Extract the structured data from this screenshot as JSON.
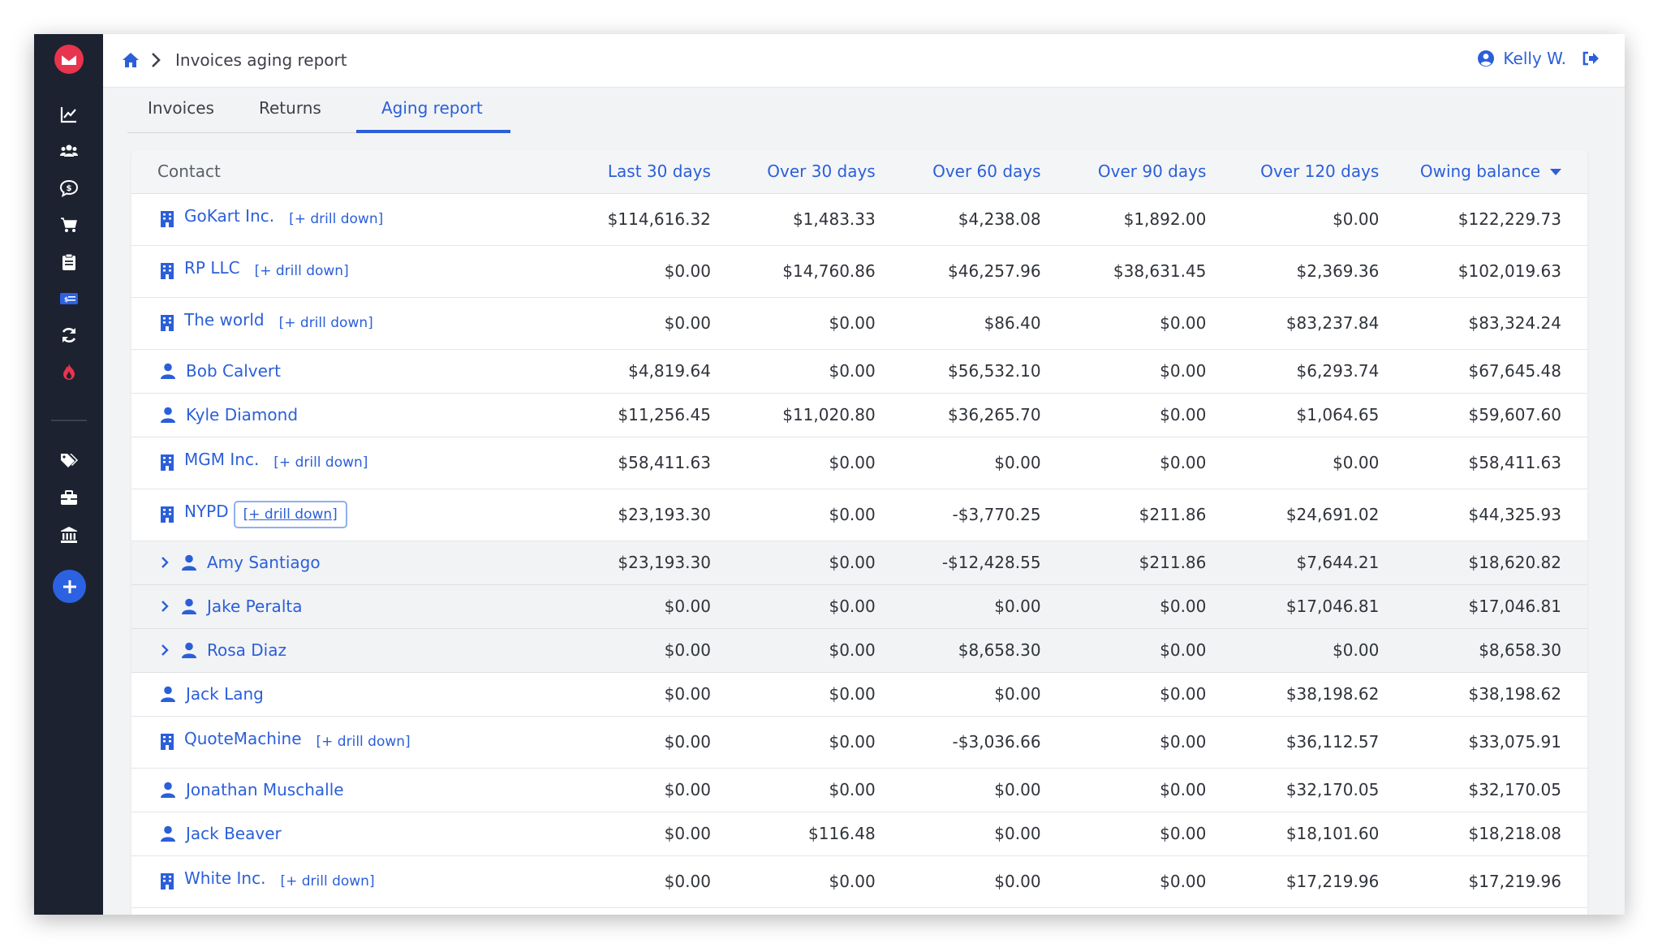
{
  "breadcrumb": {
    "title": "Invoices aging report"
  },
  "user": {
    "name": "Kelly W."
  },
  "tabs": [
    {
      "label": "Invoices"
    },
    {
      "label": "Returns"
    },
    {
      "label": "Aging report"
    }
  ],
  "table": {
    "columns": [
      "Contact",
      "Last 30 days",
      "Over 30 days",
      "Over 60 days",
      "Over 90 days",
      "Over 120 days",
      "Owing balance"
    ],
    "drill_label": "[+ drill down]",
    "rows": [
      {
        "name": "GoKart Inc.",
        "type": "company",
        "values": [
          "$114,616.32",
          "$1,483.33",
          "$4,238.08",
          "$1,892.00",
          "$0.00",
          "$122,229.73"
        ]
      },
      {
        "name": "RP LLC",
        "type": "company",
        "values": [
          "$0.00",
          "$14,760.86",
          "$46,257.96",
          "$38,631.45",
          "$2,369.36",
          "$102,019.63"
        ]
      },
      {
        "name": "The world",
        "type": "company",
        "values": [
          "$0.00",
          "$0.00",
          "$86.40",
          "$0.00",
          "$83,237.84",
          "$83,324.24"
        ]
      },
      {
        "name": "Bob Calvert",
        "type": "person",
        "values": [
          "$4,819.64",
          "$0.00",
          "$56,532.10",
          "$0.00",
          "$6,293.74",
          "$67,645.48"
        ]
      },
      {
        "name": "Kyle Diamond",
        "type": "person",
        "values": [
          "$11,256.45",
          "$11,020.80",
          "$36,265.70",
          "$0.00",
          "$1,064.65",
          "$59,607.60"
        ]
      },
      {
        "name": "MGM Inc.",
        "type": "company",
        "values": [
          "$58,411.63",
          "$0.00",
          "$0.00",
          "$0.00",
          "$0.00",
          "$58,411.63"
        ]
      },
      {
        "name": "NYPD",
        "type": "company",
        "values": [
          "$23,193.30",
          "$0.00",
          "-$3,770.25",
          "$211.86",
          "$24,691.02",
          "$44,325.93"
        ]
      },
      {
        "name": "Amy Santiago",
        "type": "sub-person",
        "values": [
          "$23,193.30",
          "$0.00",
          "-$12,428.55",
          "$211.86",
          "$7,644.21",
          "$18,620.82"
        ]
      },
      {
        "name": "Jake Peralta",
        "type": "sub-person",
        "values": [
          "$0.00",
          "$0.00",
          "$0.00",
          "$0.00",
          "$17,046.81",
          "$17,046.81"
        ]
      },
      {
        "name": "Rosa Diaz",
        "type": "sub-person",
        "values": [
          "$0.00",
          "$0.00",
          "$8,658.30",
          "$0.00",
          "$0.00",
          "$8,658.30"
        ]
      },
      {
        "name": "Jack Lang",
        "type": "person",
        "values": [
          "$0.00",
          "$0.00",
          "$0.00",
          "$0.00",
          "$38,198.62",
          "$38,198.62"
        ]
      },
      {
        "name": "QuoteMachine",
        "type": "company",
        "values": [
          "$0.00",
          "$0.00",
          "-$3,036.66",
          "$0.00",
          "$36,112.57",
          "$33,075.91"
        ]
      },
      {
        "name": "Jonathan Muschalle",
        "type": "person",
        "values": [
          "$0.00",
          "$0.00",
          "$0.00",
          "$0.00",
          "$32,170.05",
          "$32,170.05"
        ]
      },
      {
        "name": "Jack Beaver",
        "type": "person",
        "values": [
          "$0.00",
          "$116.48",
          "$0.00",
          "$0.00",
          "$18,101.60",
          "$18,218.08"
        ]
      },
      {
        "name": "White Inc.",
        "type": "company",
        "values": [
          "$0.00",
          "$0.00",
          "$0.00",
          "$0.00",
          "$17,219.96",
          "$17,219.96"
        ]
      }
    ]
  },
  "colors": {
    "accent": "#2b5fd9",
    "sidebar": "#1c2230",
    "brand_red": "#e8344e"
  },
  "icons": {
    "sidebar": [
      "chart-line-icon",
      "users-icon",
      "money-chat-icon",
      "cart-icon",
      "clipboard-icon",
      "invoice-card-icon",
      "sync-icon",
      "flame-icon",
      "tags-icon",
      "toolbox-icon",
      "bank-icon",
      "plus-icon"
    ]
  }
}
